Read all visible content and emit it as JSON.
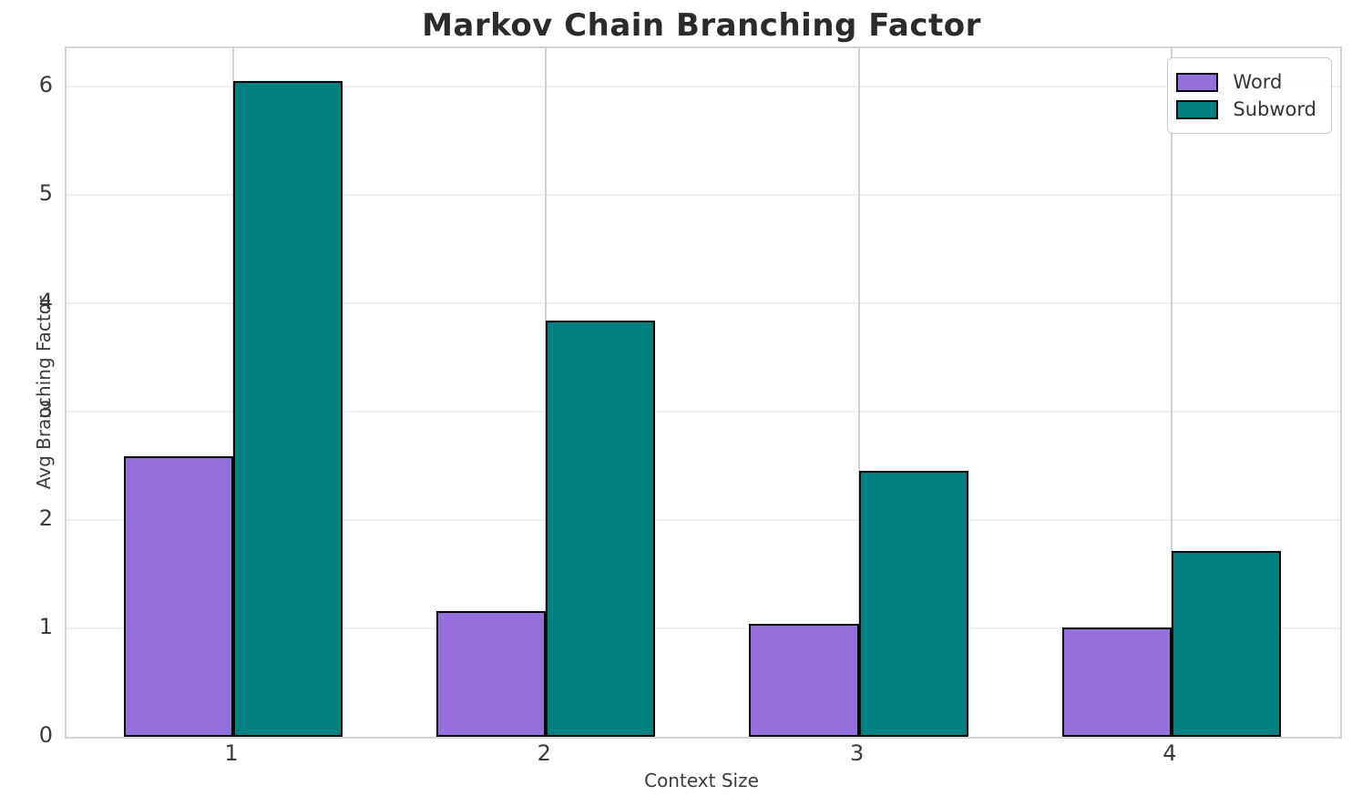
{
  "chart_data": {
    "type": "bar",
    "title": "Markov Chain Branching Factor",
    "xlabel": "Context Size",
    "ylabel": "Avg Branching Factor",
    "categories": [
      "1",
      "2",
      "3",
      "4"
    ],
    "series": [
      {
        "name": "Word",
        "color": "#9370DB",
        "values": [
          2.59,
          1.16,
          1.04,
          1.01
        ]
      },
      {
        "name": "Subword",
        "color": "#008080",
        "values": [
          6.05,
          3.84,
          2.45,
          1.71
        ]
      }
    ],
    "bar_edge_color": "#000000",
    "bar_width_data_units": 0.35,
    "xlim": [
      0.467,
      4.539
    ],
    "ylim": [
      0,
      6.35
    ],
    "yticks": [
      "0",
      "1",
      "2",
      "3",
      "4",
      "5",
      "6"
    ],
    "grid": true,
    "legend_position": "upper right",
    "colors": {
      "grid_horizontal": "#f0f0f0",
      "grid_vertical": "#d2d2d2",
      "spine": "#d5d5d5",
      "title_text": "#2b2b2b",
      "tick_text": "#3b3b3b"
    }
  },
  "legend": {
    "items": [
      {
        "label": "Word",
        "color": "#9370DB"
      },
      {
        "label": "Subword",
        "color": "#008080"
      }
    ]
  }
}
